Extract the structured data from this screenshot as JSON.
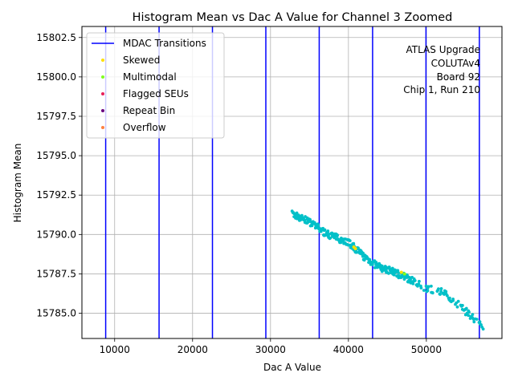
{
  "chart_data": {
    "type": "scatter",
    "title": "Histogram Mean vs Dac A Value for Channel 3 Zoomed",
    "xlabel": "Dac A Value",
    "ylabel": "Histogram Mean",
    "xlim": [
      5800,
      59700
    ],
    "ylim": [
      15783.4,
      15803.2
    ],
    "xticks": [
      10000,
      20000,
      30000,
      40000,
      50000
    ],
    "xtick_labels": [
      "10000",
      "20000",
      "30000",
      "40000",
      "50000"
    ],
    "yticks": [
      15785.0,
      15787.5,
      15790.0,
      15792.5,
      15795.0,
      15797.5,
      15800.0,
      15802.5
    ],
    "ytick_labels": [
      "15785.0",
      "15787.5",
      "15790.0",
      "15792.5",
      "15795.0",
      "15797.5",
      "15800.0",
      "15802.5"
    ],
    "grid": true,
    "legend_position": "top-left",
    "legend": [
      {
        "label": "MDAC Transitions",
        "marker": "line",
        "color": "#0000ff"
      },
      {
        "label": "Skewed",
        "marker": "dot",
        "color": "#ffe000"
      },
      {
        "label": "Multimodal",
        "marker": "dot",
        "color": "#80ff20"
      },
      {
        "label": "Flagged SEUs",
        "marker": "dot",
        "color": "#e8205a"
      },
      {
        "label": "Repeat Bin",
        "marker": "dot",
        "color": "#6a0080"
      },
      {
        "label": "Overflow",
        "marker": "dot",
        "color": "#ff8040"
      }
    ],
    "mdac_transitions_x": [
      8850,
      15700,
      22550,
      29400,
      36250,
      43100,
      49950,
      56800
    ],
    "series": [
      {
        "name": "Data",
        "color": "#00c0c8",
        "x_range": [
          32800,
          57300
        ],
        "trend_x": [
          32800,
          35000,
          37000,
          40000,
          42000,
          44000,
          46000,
          48000,
          50000,
          52000,
          54000,
          56000,
          57300
        ],
        "trend_y": [
          15791.3,
          15790.8,
          15790.1,
          15789.5,
          15788.6,
          15787.9,
          15787.6,
          15787.1,
          15786.6,
          15786.4,
          15785.6,
          15784.7,
          15784.2
        ],
        "n_points": 420
      },
      {
        "name": "Skewed",
        "color": "#ffe000",
        "points": [
          [
            40700,
            15789.2
          ],
          [
            40900,
            15789.1
          ],
          [
            46800,
            15787.6
          ]
        ]
      },
      {
        "name": "Multimodal",
        "color": "#80ff20",
        "points": [
          [
            47200,
            15787.5
          ]
        ]
      }
    ],
    "annotation": [
      "ATLAS Upgrade",
      "COLUTAv4",
      "Board 92",
      "Chip 1, Run 210"
    ]
  },
  "colors": {
    "mdac_line": "#0000ff",
    "data": "#00c0c8",
    "grid": "#b0b0b0"
  }
}
